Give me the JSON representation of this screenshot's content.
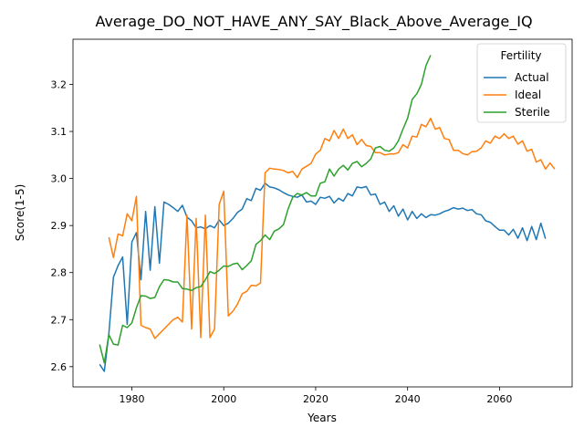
{
  "chart_data": {
    "type": "line",
    "title": "Average_DO_NOT_HAVE_ANY_SAY_Black_Above_Average_IQ",
    "xlabel": "Years",
    "ylabel": "Score(1-5)",
    "xlim": [
      1967.2,
      2075.8
    ],
    "ylim": [
      2.557,
      3.296
    ],
    "x_ticks": [
      1980,
      2000,
      2020,
      2040,
      2060
    ],
    "y_ticks": [
      2.6,
      2.7,
      2.8,
      2.9,
      3.0,
      3.1,
      3.2
    ],
    "y_tick_labels": [
      "2.6",
      "2.7",
      "2.8",
      "2.9",
      "3.0",
      "3.1",
      "3.2"
    ],
    "grid": false,
    "legend": {
      "title": "Fertility",
      "location": "top-right"
    },
    "series": [
      {
        "name": "Actual",
        "color": "#1f77b4",
        "x_start": 1973,
        "values": [
          2.605,
          2.59,
          2.67,
          2.79,
          2.815,
          2.833,
          2.69,
          2.865,
          2.885,
          2.785,
          2.93,
          2.805,
          2.94,
          2.82,
          2.95,
          2.945,
          2.938,
          2.93,
          2.943,
          2.918,
          2.91,
          2.895,
          2.897,
          2.893,
          2.9,
          2.895,
          2.912,
          2.9,
          2.905,
          2.915,
          2.928,
          2.935,
          2.957,
          2.953,
          2.979,
          2.975,
          2.99,
          2.982,
          2.98,
          2.976,
          2.97,
          2.965,
          2.962,
          2.96,
          2.965,
          2.95,
          2.952,
          2.945,
          2.96,
          2.958,
          2.962,
          2.948,
          2.958,
          2.952,
          2.968,
          2.963,
          2.982,
          2.98,
          2.983,
          2.965,
          2.967,
          2.945,
          2.95,
          2.93,
          2.942,
          2.92,
          2.935,
          2.912,
          2.93,
          2.915,
          2.925,
          2.917,
          2.923,
          2.922,
          2.925,
          2.93,
          2.933,
          2.938,
          2.935,
          2.937,
          2.932,
          2.934,
          2.925,
          2.923,
          2.91,
          2.907,
          2.898,
          2.89,
          2.89,
          2.88,
          2.892,
          2.873,
          2.895,
          2.868,
          2.898,
          2.87,
          2.905,
          2.872
        ]
      },
      {
        "name": "Ideal",
        "color": "#ff7f0e",
        "x_start": 1975,
        "values": [
          2.875,
          2.832,
          2.882,
          2.878,
          2.925,
          2.91,
          2.962,
          2.688,
          2.683,
          2.68,
          2.66,
          2.67,
          2.68,
          2.69,
          2.7,
          2.705,
          2.695,
          2.922,
          2.68,
          2.915,
          2.662,
          2.922,
          2.662,
          2.68,
          2.945,
          2.973,
          2.708,
          2.718,
          2.733,
          2.755,
          2.76,
          2.773,
          2.772,
          2.778,
          3.012,
          3.022,
          3.02,
          3.019,
          3.017,
          3.012,
          3.015,
          3.002,
          3.02,
          3.026,
          3.032,
          3.052,
          3.06,
          3.085,
          3.08,
          3.102,
          3.085,
          3.105,
          3.085,
          3.093,
          3.072,
          3.083,
          3.07,
          3.068,
          3.055,
          3.055,
          3.05,
          3.052,
          3.052,
          3.055,
          3.072,
          3.065,
          3.09,
          3.088,
          3.115,
          3.11,
          3.128,
          3.105,
          3.108,
          3.085,
          3.083,
          3.06,
          3.06,
          3.053,
          3.05,
          3.057,
          3.058,
          3.065,
          3.08,
          3.075,
          3.09,
          3.085,
          3.095,
          3.085,
          3.09,
          3.073,
          3.08,
          3.058,
          3.062,
          3.035,
          3.04,
          3.02,
          3.033,
          3.02
        ]
      },
      {
        "name": "Sterile",
        "color": "#2ca02c",
        "x_start": 1973,
        "values": [
          2.647,
          2.608,
          2.668,
          2.648,
          2.646,
          2.688,
          2.683,
          2.693,
          2.725,
          2.751,
          2.75,
          2.745,
          2.747,
          2.77,
          2.785,
          2.784,
          2.78,
          2.78,
          2.766,
          2.765,
          2.762,
          2.768,
          2.77,
          2.785,
          2.802,
          2.798,
          2.805,
          2.814,
          2.813,
          2.818,
          2.82,
          2.806,
          2.815,
          2.825,
          2.86,
          2.868,
          2.88,
          2.87,
          2.888,
          2.893,
          2.902,
          2.935,
          2.96,
          2.968,
          2.965,
          2.97,
          2.963,
          2.963,
          2.99,
          2.993,
          3.02,
          3.005,
          3.02,
          3.028,
          3.018,
          3.032,
          3.036,
          3.025,
          3.032,
          3.042,
          3.065,
          3.068,
          3.06,
          3.058,
          3.065,
          3.08,
          3.105,
          3.128,
          3.168,
          3.18,
          3.2,
          3.24,
          3.262
        ]
      }
    ]
  }
}
